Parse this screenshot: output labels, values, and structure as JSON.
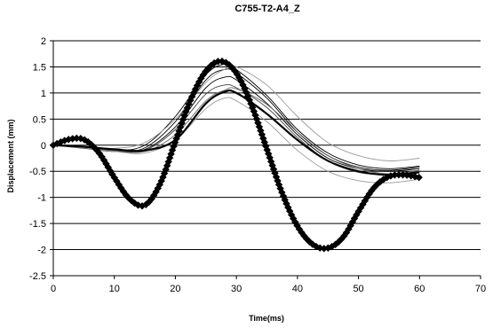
{
  "chart_data": {
    "type": "line",
    "title": "C755-T2-A4_Z",
    "xlabel": "Time(ms)",
    "ylabel": "Displacement (mm)",
    "xlim": [
      0,
      70
    ],
    "ylim": [
      -2.5,
      2
    ],
    "xticks": [
      0,
      10,
      20,
      30,
      40,
      50,
      60,
      70
    ],
    "yticks": [
      -2.5,
      -2,
      -1.5,
      -1,
      -0.5,
      0,
      0.5,
      1,
      1.5,
      2
    ],
    "grid": "horizontal",
    "legend": "none",
    "series": [
      {
        "style": "diamond-markers",
        "color": "#000000",
        "x": [
          0,
          2.5,
          5,
          7.5,
          10,
          12.5,
          15,
          17.5,
          20,
          22.5,
          25,
          27.5,
          30,
          32.5,
          35,
          37.5,
          40,
          42.5,
          45,
          47.5,
          50,
          52.5,
          55,
          57.5,
          60
        ],
        "y": [
          0,
          0.11,
          0.11,
          -0.15,
          -0.62,
          -1.03,
          -1.15,
          -0.74,
          0.07,
          0.87,
          1.42,
          1.61,
          1.38,
          0.76,
          -0.08,
          -0.92,
          -1.55,
          -1.9,
          -1.97,
          -1.76,
          -1.27,
          -0.82,
          -0.6,
          -0.57,
          -0.62
        ]
      },
      {
        "style": "thick",
        "color": "#000000",
        "x": [
          0,
          5,
          10,
          15,
          20,
          25,
          28,
          30,
          35,
          40,
          45,
          50,
          55,
          60
        ],
        "y": [
          0,
          -0.03,
          -0.08,
          -0.1,
          0.1,
          0.8,
          1.02,
          1.0,
          0.6,
          0.1,
          -0.3,
          -0.5,
          -0.57,
          -0.52
        ]
      },
      {
        "style": "thin",
        "color": "#000000",
        "x": [
          0,
          5,
          10,
          15,
          20,
          25,
          28,
          30,
          35,
          40,
          45,
          50,
          55,
          60
        ],
        "y": [
          0,
          -0.04,
          -0.1,
          0.0,
          0.55,
          1.35,
          1.55,
          1.45,
          0.95,
          0.3,
          -0.15,
          -0.38,
          -0.45,
          -0.4
        ]
      },
      {
        "style": "thin",
        "color": "#000000",
        "x": [
          0,
          5,
          10,
          15,
          20,
          25,
          28,
          30,
          35,
          40,
          45,
          50,
          55,
          60
        ],
        "y": [
          0,
          -0.05,
          -0.12,
          -0.05,
          0.45,
          1.25,
          1.45,
          1.38,
          0.9,
          0.25,
          -0.2,
          -0.42,
          -0.48,
          -0.42
        ]
      },
      {
        "style": "thin",
        "color": "#000000",
        "x": [
          0,
          5,
          10,
          15,
          20,
          25,
          28,
          30,
          35,
          40,
          45,
          50,
          55,
          60
        ],
        "y": [
          0,
          -0.05,
          -0.1,
          -0.08,
          0.35,
          1.1,
          1.3,
          1.25,
          0.8,
          0.2,
          -0.25,
          -0.45,
          -0.5,
          -0.45
        ]
      },
      {
        "style": "thin",
        "color": "#444444",
        "x": [
          0,
          5,
          10,
          15,
          20,
          25,
          28,
          30,
          35,
          40,
          45,
          50,
          55,
          60
        ],
        "y": [
          0,
          -0.06,
          -0.12,
          -0.1,
          0.3,
          0.98,
          1.15,
          1.1,
          0.72,
          0.15,
          -0.3,
          -0.52,
          -0.55,
          -0.48
        ]
      },
      {
        "style": "thin",
        "color": "#666666",
        "x": [
          0,
          5,
          10,
          15,
          20,
          25,
          28,
          30,
          35,
          40,
          45,
          50,
          55,
          60
        ],
        "y": [
          0,
          -0.04,
          -0.1,
          -0.12,
          0.2,
          0.85,
          1.05,
          1.08,
          0.78,
          0.25,
          -0.2,
          -0.45,
          -0.55,
          -0.5
        ]
      },
      {
        "style": "thin",
        "color": "#999999",
        "x": [
          0,
          5,
          10,
          15,
          20,
          25,
          28,
          30,
          35,
          40,
          45,
          50,
          55,
          60
        ],
        "y": [
          0,
          -0.05,
          -0.12,
          -0.15,
          0.1,
          0.7,
          0.9,
          0.85,
          0.45,
          -0.1,
          -0.5,
          -0.68,
          -0.72,
          -0.65
        ]
      },
      {
        "style": "thin",
        "color": "#999999",
        "x": [
          0,
          5,
          10,
          15,
          20,
          25,
          28,
          30,
          35,
          40,
          45,
          50,
          55,
          60
        ],
        "y": [
          0,
          -0.02,
          -0.06,
          0.05,
          0.5,
          1.2,
          1.45,
          1.5,
          1.15,
          0.55,
          0.05,
          -0.2,
          -0.3,
          -0.25
        ]
      }
    ]
  }
}
